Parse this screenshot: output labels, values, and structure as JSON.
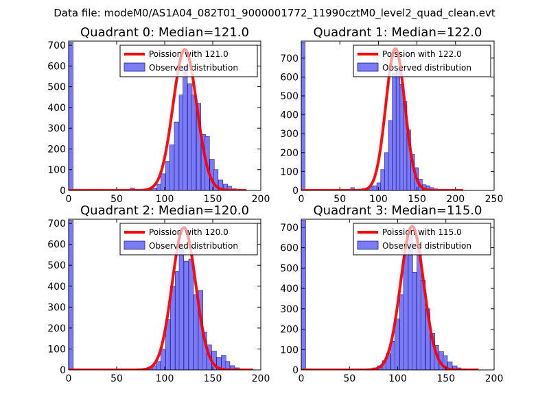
{
  "figure": {
    "suptitle": "Data file: modeM0/AS1A04_082T01_9000001772_11990cztM0_level2_quad_clean.evt",
    "background": "#ffffff"
  },
  "colors": {
    "hist_fill": "#7b7bf7",
    "hist_edge": "#1a1a8a",
    "poisson_line": "#ff0000",
    "poisson_line_faded": "#ff9090",
    "axes": "#000000",
    "legend_border": "#000000"
  },
  "chart_data": [
    {
      "type": "bar",
      "title": "Quadrant 0: Median=121.0",
      "xlim": [
        0,
        200
      ],
      "ylim": [
        0,
        720
      ],
      "xticks": [
        0,
        50,
        100,
        150,
        200
      ],
      "yticks": [
        0,
        100,
        200,
        300,
        400,
        500,
        600,
        700
      ],
      "legend": {
        "placement": "top-right",
        "line_label": "Poission with 121.0",
        "hist_label": "Observed distribution"
      },
      "poisson_mean": 121.0,
      "poisson_peak": 680,
      "poisson_x_range": [
        0,
        185
      ],
      "bin_width": 4.6,
      "bins": [
        [
          0,
          715
        ],
        [
          4.6,
          5
        ],
        [
          64,
          12
        ],
        [
          73,
          5
        ],
        [
          78,
          5
        ],
        [
          82,
          8
        ],
        [
          87,
          10
        ],
        [
          92,
          30
        ],
        [
          96,
          80
        ],
        [
          101,
          140
        ],
        [
          105,
          220
        ],
        [
          110,
          330
        ],
        [
          115,
          460
        ],
        [
          119,
          600
        ],
        [
          124,
          515
        ],
        [
          128,
          460
        ],
        [
          133,
          420
        ],
        [
          138,
          270
        ],
        [
          142,
          260
        ],
        [
          147,
          150
        ],
        [
          151,
          100
        ],
        [
          156,
          50
        ],
        [
          161,
          30
        ],
        [
          165,
          20
        ],
        [
          170,
          8
        ],
        [
          175,
          4
        ],
        [
          179,
          2
        ]
      ]
    },
    {
      "type": "bar",
      "title": "Quadrant 1: Median=122.0",
      "xlim": [
        0,
        250
      ],
      "ylim": [
        0,
        790
      ],
      "xticks": [
        0,
        50,
        100,
        150,
        200,
        250
      ],
      "yticks": [
        0,
        100,
        200,
        300,
        400,
        500,
        600,
        700
      ],
      "legend": {
        "placement": "top-right",
        "line_label": "Poission with 122.0",
        "hist_label": "Observed distribution"
      },
      "poisson_mean": 122.0,
      "poisson_peak": 750,
      "poisson_x_range": [
        0,
        210
      ],
      "bin_width": 4.9,
      "bins": [
        [
          0,
          785
        ],
        [
          4.9,
          5
        ],
        [
          64,
          15
        ],
        [
          74,
          6
        ],
        [
          79,
          10
        ],
        [
          83,
          12
        ],
        [
          88,
          20
        ],
        [
          93,
          25
        ],
        [
          98,
          40
        ],
        [
          103,
          110
        ],
        [
          108,
          200
        ],
        [
          113,
          370
        ],
        [
          118,
          620
        ],
        [
          123,
          640
        ],
        [
          128,
          560
        ],
        [
          132,
          470
        ],
        [
          137,
          320
        ],
        [
          142,
          190
        ],
        [
          147,
          120
        ],
        [
          152,
          60
        ],
        [
          157,
          30
        ],
        [
          162,
          25
        ],
        [
          167,
          15
        ],
        [
          172,
          8
        ],
        [
          176,
          4
        ],
        [
          181,
          2
        ]
      ]
    },
    {
      "type": "bar",
      "title": "Quadrant 2: Median=120.0",
      "xlim": [
        0,
        200
      ],
      "ylim": [
        0,
        720
      ],
      "xticks": [
        0,
        50,
        100,
        150,
        200
      ],
      "yticks": [
        0,
        100,
        200,
        300,
        400,
        500,
        600,
        700
      ],
      "legend": {
        "placement": "top-right",
        "line_label": "Poission with 120.0",
        "hist_label": "Observed distribution"
      },
      "poisson_mean": 120.0,
      "poisson_peak": 680,
      "poisson_x_range": [
        0,
        192
      ],
      "bin_width": 4.8,
      "bins": [
        [
          0,
          715
        ],
        [
          4.8,
          5
        ],
        [
          72,
          4
        ],
        [
          77,
          6
        ],
        [
          82,
          12
        ],
        [
          87,
          20
        ],
        [
          91,
          40
        ],
        [
          96,
          100
        ],
        [
          101,
          240
        ],
        [
          106,
          400
        ],
        [
          111,
          470
        ],
        [
          115,
          580
        ],
        [
          120,
          520
        ],
        [
          125,
          530
        ],
        [
          130,
          360
        ],
        [
          135,
          380
        ],
        [
          139,
          180
        ],
        [
          144,
          120
        ],
        [
          149,
          90
        ],
        [
          154,
          60
        ],
        [
          159,
          70
        ],
        [
          163,
          40
        ],
        [
          168,
          20
        ],
        [
          173,
          10
        ],
        [
          178,
          4
        ],
        [
          183,
          2
        ]
      ]
    },
    {
      "type": "bar",
      "title": "Quadrant 3: Median=115.0",
      "xlim": [
        0,
        200
      ],
      "ylim": [
        0,
        740
      ],
      "xticks": [
        0,
        50,
        100,
        150,
        200
      ],
      "yticks": [
        0,
        100,
        200,
        300,
        400,
        500,
        600,
        700
      ],
      "legend": {
        "placement": "top-right",
        "line_label": "Poission with 115.0",
        "hist_label": "Observed distribution"
      },
      "poisson_mean": 115.0,
      "poisson_peak": 705,
      "poisson_x_range": [
        0,
        184
      ],
      "bin_width": 4.6,
      "bins": [
        [
          0,
          735
        ],
        [
          4.6,
          5
        ],
        [
          60,
          5
        ],
        [
          70,
          6
        ],
        [
          74,
          10
        ],
        [
          79,
          20
        ],
        [
          84,
          45
        ],
        [
          88,
          80
        ],
        [
          93,
          140
        ],
        [
          97,
          250
        ],
        [
          102,
          370
        ],
        [
          106,
          560
        ],
        [
          111,
          660
        ],
        [
          115,
          480
        ],
        [
          120,
          590
        ],
        [
          124,
          440
        ],
        [
          129,
          300
        ],
        [
          134,
          180
        ],
        [
          138,
          120
        ],
        [
          143,
          90
        ],
        [
          147,
          70
        ],
        [
          152,
          40
        ],
        [
          157,
          20
        ],
        [
          161,
          10
        ],
        [
          166,
          6
        ],
        [
          171,
          3
        ],
        [
          175,
          2
        ]
      ]
    }
  ]
}
